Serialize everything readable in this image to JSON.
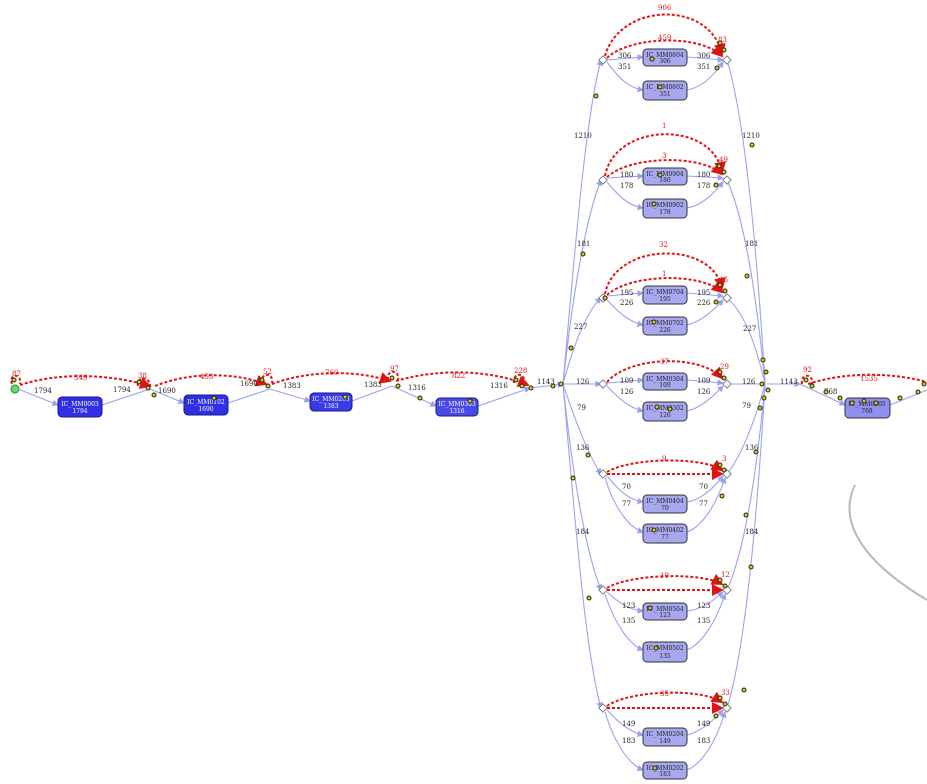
{
  "colors": {
    "dark_node": "#2f2fe6",
    "mid_node": "#4a4ae6",
    "light_node": "#a8a8f0",
    "edge": "#9aa2f0",
    "loop": "#e01414",
    "dot": "#d6d400"
  },
  "main_chain": {
    "nodes": [
      {
        "title": "IC_MM0003",
        "count": "1794"
      },
      {
        "title": "IC_MM0102",
        "count": "1690"
      },
      {
        "title": "IC_MM0203",
        "count": "1383"
      },
      {
        "title": "IC_MM0303",
        "count": "1316"
      }
    ],
    "edge_labels": [
      "1794",
      "1794",
      "1690",
      "1690",
      "1383",
      "1383",
      "1316",
      "1316",
      "1143"
    ],
    "loop_labels": [
      "87",
      "349",
      "38",
      "453",
      "52",
      "760",
      "97",
      "822",
      "228"
    ]
  },
  "branches": [
    {
      "top_count": "1210",
      "upper": "306",
      "lower": "351",
      "node_a": "IC_MM0604",
      "count_a": "306",
      "node_b": "IC_MM0602",
      "count_b": "351",
      "loop_outer": "906",
      "loop_inner": "459",
      "loop_end": "83"
    },
    {
      "top_count": "181",
      "upper": "180",
      "lower": "178",
      "node_a": "IC_MM0904",
      "count_a": "180",
      "node_b": "IC_MM0902",
      "count_b": "178",
      "loop_outer": "1",
      "loop_inner": "3",
      "loop_end": "49"
    },
    {
      "top_count": "227",
      "upper": "195",
      "lower": "226",
      "node_a": "IC_MM0704",
      "count_a": "195",
      "node_b": "IC_MM0702",
      "count_b": "226",
      "loop_outer": "32",
      "loop_inner": "1",
      "loop_end": "46"
    },
    {
      "top_count": "126",
      "upper": "109",
      "lower": "126",
      "node_a": "IC_MM0304",
      "count_a": "109",
      "node_b": "IC_MM0302",
      "count_b": "126",
      "loop_outer": "",
      "loop_inner": "37",
      "loop_end": "29"
    },
    {
      "top_count": "79",
      "upper": "70",
      "lower": "77",
      "node_a": "IC_MM0404",
      "count_a": "70",
      "node_b": "IC_MM0402",
      "count_b": "77",
      "loop_outer": "",
      "loop_inner": "9",
      "loop_end": "3"
    },
    {
      "top_count": "136",
      "upper": "123",
      "lower": "135",
      "node_a": "IC_MM0504",
      "count_a": "123",
      "node_b": "IC_MM0502",
      "count_b": "135",
      "loop_outer": "",
      "loop_inner": "19",
      "loop_end": "12"
    },
    {
      "top_count": "184",
      "upper": "149",
      "lower": "183",
      "node_a": "IC_MM0204",
      "count_a": "149",
      "node_b": "IC_MM0202",
      "count_b": "183",
      "loop_outer": "",
      "loop_inner": "35",
      "loop_end": "33"
    }
  ],
  "right_side": {
    "merge_label": "1143",
    "out_label": "768",
    "loop_left": "92",
    "loop_main": "1535",
    "node": "IC_MM0905",
    "node_count": "768"
  },
  "return_labels": {
    "r1": "1210",
    "r2": "181",
    "r3": "227",
    "r4": "126",
    "r5": "79",
    "r6": "136",
    "r7": "184"
  }
}
